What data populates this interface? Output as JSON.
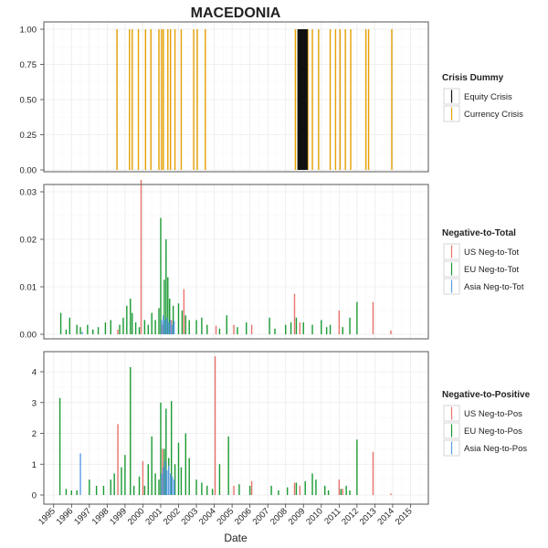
{
  "chart_data": [
    {
      "type": "bar",
      "title": "MACEDONIA",
      "ylim": [
        0,
        1
      ],
      "yticks": [
        "0.00",
        "0.25",
        "0.50",
        "0.75",
        "1.00"
      ],
      "legend": {
        "title": "Crisis Dummy",
        "placement": "right",
        "entries": [
          {
            "label": "Equity Crisis",
            "color": "#111111"
          },
          {
            "label": "Currency Crisis",
            "color": "#E69F00"
          }
        ]
      },
      "series": [
        {
          "name": "Currency Crisis",
          "color": "#E69F00",
          "x": [
            1998.55,
            1999.25,
            1999.4,
            1999.75,
            2000.15,
            2000.45,
            2000.9,
            2001.05,
            2001.15,
            2001.4,
            2001.55,
            2001.8,
            2002.15,
            2002.85,
            2003.05,
            2003.5,
            2008.55,
            2008.7,
            2009.25,
            2009.5,
            2009.85,
            2010.5,
            2010.8,
            2011.05,
            2011.35,
            2011.65,
            2012.5,
            2012.65,
            2013.95
          ],
          "values": [
            1,
            1,
            1,
            1,
            1,
            1,
            1,
            1,
            1,
            1,
            1,
            1,
            1,
            1,
            1,
            1,
            1,
            1,
            1,
            1,
            1,
            1,
            1,
            1,
            1,
            1,
            1,
            1,
            1
          ]
        },
        {
          "name": "Equity Crisis",
          "color": "#111111",
          "x": [
            2008.75,
            2008.85,
            2008.95,
            2009.05,
            2009.15
          ],
          "values": [
            1,
            1,
            1,
            1,
            1
          ]
        }
      ]
    },
    {
      "type": "bar",
      "ylim": [
        0,
        0.033
      ],
      "yticks": [
        "0.00",
        "0.01",
        "0.02",
        "0.03"
      ],
      "legend": {
        "title": "Negative-to-Total",
        "placement": "right",
        "entries": [
          {
            "label": "US Neg-to-Tot",
            "color": "#E8736B"
          },
          {
            "label": "EU Neg-to-Tot",
            "color": "#1A9A33"
          },
          {
            "label": "Asia Neg-to-Tot",
            "color": "#5A9BE8"
          }
        ]
      },
      "series": [
        {
          "name": "US Neg-to-Tot",
          "color": "#E8736B",
          "x": [
            1998.6,
            1999.9,
            2001.1,
            2001.6,
            2002.3,
            2004.1,
            2005.1,
            2006.1,
            2008.5,
            2008.8,
            2011.0,
            2011.2,
            2012.9,
            2013.9
          ],
          "values": [
            0.001,
            0.0325,
            0.002,
            0.003,
            0.0095,
            0.0018,
            0.002,
            0.002,
            0.0085,
            0.0025,
            0.005,
            0.0015,
            0.0068,
            0.0008
          ]
        },
        {
          "name": "EU Neg-to-Tot",
          "color": "#1A9A33",
          "x": [
            1995.4,
            1995.7,
            1995.9,
            1996.3,
            1996.5,
            1996.9,
            1997.2,
            1997.5,
            1997.9,
            1998.2,
            1998.7,
            1998.9,
            1999.1,
            1999.3,
            1999.4,
            1999.6,
            1999.8,
            2000.1,
            2000.3,
            2000.5,
            2000.7,
            2000.9,
            2001.0,
            2001.2,
            2001.3,
            2001.4,
            2001.5,
            2001.7,
            2002.0,
            2002.2,
            2002.4,
            2002.6,
            2003.0,
            2003.3,
            2003.6,
            2004.3,
            2004.7,
            2005.3,
            2005.8,
            2007.1,
            2007.4,
            2008.0,
            2008.3,
            2008.6,
            2009.0,
            2009.5,
            2010.0,
            2010.3,
            2010.5,
            2011.2,
            2011.6,
            2012.0
          ],
          "values": [
            0.0045,
            0.001,
            0.0035,
            0.002,
            0.0015,
            0.002,
            0.001,
            0.0015,
            0.0025,
            0.003,
            0.002,
            0.0035,
            0.006,
            0.0075,
            0.0045,
            0.0025,
            0.0015,
            0.003,
            0.002,
            0.0045,
            0.003,
            0.0055,
            0.0245,
            0.0115,
            0.02,
            0.012,
            0.0075,
            0.006,
            0.0065,
            0.005,
            0.004,
            0.003,
            0.003,
            0.0035,
            0.002,
            0.0012,
            0.004,
            0.0015,
            0.0025,
            0.0035,
            0.0012,
            0.002,
            0.0025,
            0.0035,
            0.0025,
            0.002,
            0.003,
            0.0015,
            0.002,
            0.0015,
            0.0035,
            0.0068
          ]
        },
        {
          "name": "Asia Neg-to-Tot",
          "color": "#5A9BE8",
          "x": [
            1996.6,
            2001.05,
            2001.15,
            2001.25,
            2001.35,
            2001.45,
            2001.55,
            2001.65,
            2001.75
          ],
          "values": [
            0.0005,
            0.003,
            0.004,
            0.003,
            0.0035,
            0.0025,
            0.003,
            0.002,
            0.0028
          ]
        }
      ]
    },
    {
      "type": "bar",
      "xlabel": "Date",
      "ylim": [
        0,
        4.6
      ],
      "yticks": [
        "0",
        "1",
        "2",
        "3",
        "4"
      ],
      "xticks": [
        "1995",
        "1996",
        "1997",
        "1998",
        "1999",
        "2000",
        "2001",
        "2002",
        "2003",
        "2004",
        "2005",
        "2006",
        "2007",
        "2008",
        "2009",
        "2010",
        "2011",
        "2012",
        "2013",
        "2014",
        "2015"
      ],
      "legend": {
        "title": "Negative-to-Positive",
        "placement": "right",
        "entries": [
          {
            "label": "US Neg-to-Pos",
            "color": "#E8736B"
          },
          {
            "label": "EU Neg-to-Pos",
            "color": "#1A9A33"
          },
          {
            "label": "Asia Neg-to-Pos",
            "color": "#5A9BE8"
          }
        ]
      },
      "series": [
        {
          "name": "US Neg-to-Pos",
          "color": "#E8736B",
          "x": [
            1998.6,
            2000.0,
            2001.1,
            2004.05,
            2005.1,
            2006.1,
            2008.5,
            2008.8,
            2011.0,
            2011.2,
            2012.9,
            2013.9
          ],
          "values": [
            2.3,
            1.1,
            1.5,
            4.5,
            0.3,
            0.45,
            0.4,
            0.3,
            0.5,
            0.2,
            1.4,
            0.05
          ]
        },
        {
          "name": "EU Neg-to-Pos",
          "color": "#1A9A33",
          "x": [
            1995.35,
            1995.7,
            1996.0,
            1996.3,
            1997.0,
            1997.4,
            1997.8,
            1998.2,
            1998.4,
            1998.8,
            1999.0,
            1999.3,
            1999.5,
            1999.8,
            2000.1,
            2000.3,
            2000.5,
            2000.7,
            2000.9,
            2001.0,
            2001.2,
            2001.3,
            2001.45,
            2001.6,
            2001.8,
            2002.0,
            2002.15,
            2002.4,
            2002.6,
            2003.0,
            2003.3,
            2003.6,
            2003.9,
            2004.3,
            2004.8,
            2005.4,
            2006.0,
            2007.2,
            2007.6,
            2008.1,
            2008.6,
            2009.1,
            2009.5,
            2009.7,
            2010.2,
            2010.4,
            2011.1,
            2011.4,
            2011.6,
            2012.0
          ],
          "values": [
            3.15,
            0.2,
            0.15,
            0.15,
            0.5,
            0.3,
            0.3,
            0.5,
            0.7,
            0.9,
            1.3,
            4.15,
            0.3,
            0.6,
            0.3,
            1.0,
            1.9,
            0.7,
            0.5,
            3.0,
            1.5,
            2.8,
            1.2,
            3.05,
            1.0,
            1.7,
            0.9,
            2.0,
            1.2,
            0.5,
            0.4,
            0.3,
            0.2,
            1.0,
            1.9,
            0.35,
            0.3,
            0.3,
            0.15,
            0.25,
            0.4,
            0.45,
            0.7,
            0.5,
            0.3,
            0.15,
            0.2,
            0.3,
            0.15,
            1.8
          ]
        },
        {
          "name": "Asia Neg-to-Pos",
          "color": "#5A9BE8",
          "x": [
            1996.5,
            2001.05,
            2001.15,
            2001.25,
            2001.35,
            2001.45,
            2001.55,
            2001.65,
            2001.75
          ],
          "values": [
            1.35,
            0.7,
            0.9,
            1.1,
            0.8,
            0.95,
            0.7,
            0.6,
            0.5
          ]
        }
      ]
    }
  ]
}
